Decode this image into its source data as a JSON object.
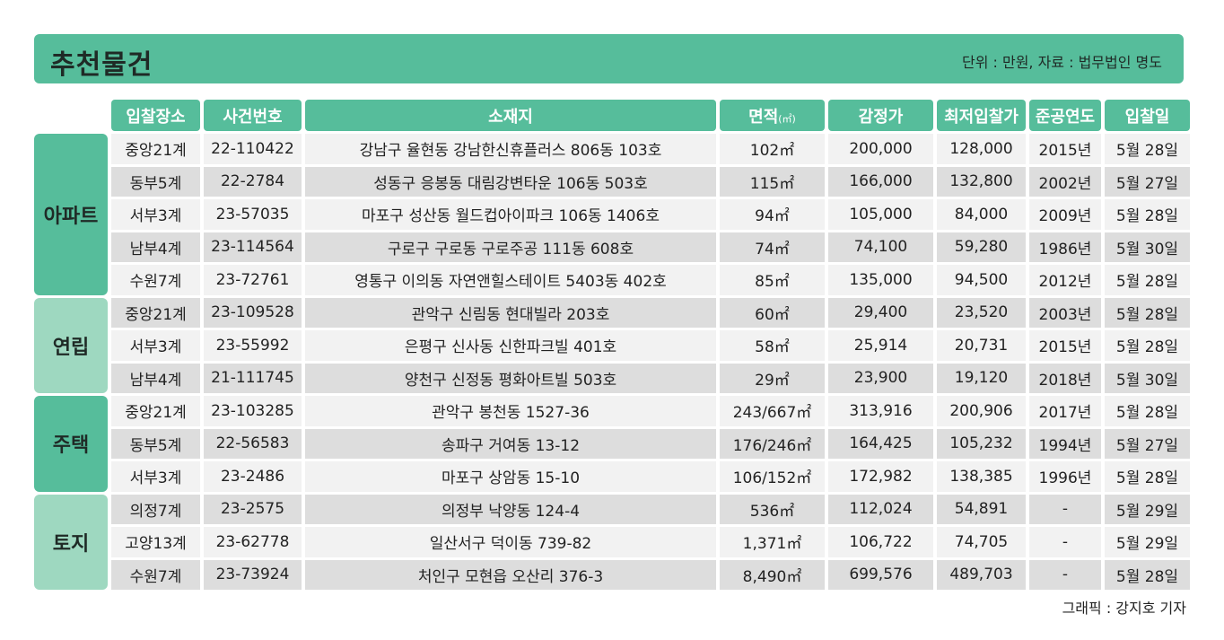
{
  "header": {
    "title": "추천물건",
    "note": "단위 : 만원, 자료 : 법무법인 명도"
  },
  "columns": {
    "place": "입찰장소",
    "case": "사건번호",
    "address": "소재지",
    "area": "면적",
    "area_unit": "(㎡)",
    "appraisal": "감정가",
    "min_bid": "최저입찰가",
    "year": "준공연도",
    "bid_date": "입찰일"
  },
  "groups": [
    {
      "category": "아파트",
      "rows": [
        {
          "place": "중앙21계",
          "case": "22-110422",
          "address": "강남구 율현동 강남한신휴플러스 806동 103호",
          "area": "102㎡",
          "appraisal": "200,000",
          "min_bid": "128,000",
          "year": "2015년",
          "bid_date": "5월 28일"
        },
        {
          "place": "동부5계",
          "case": "22-2784",
          "address": "성동구 응봉동 대림강변타운 106동 503호",
          "area": "115㎡",
          "appraisal": "166,000",
          "min_bid": "132,800",
          "year": "2002년",
          "bid_date": "5월 27일"
        },
        {
          "place": "서부3계",
          "case": "23-57035",
          "address": "마포구 성산동 월드컵아이파크 106동 1406호",
          "area": "94㎡",
          "appraisal": "105,000",
          "min_bid": "84,000",
          "year": "2009년",
          "bid_date": "5월 28일"
        },
        {
          "place": "남부4계",
          "case": "23-114564",
          "address": "구로구 구로동 구로주공 111동 608호",
          "area": "74㎡",
          "appraisal": "74,100",
          "min_bid": "59,280",
          "year": "1986년",
          "bid_date": "5월 30일"
        },
        {
          "place": "수원7계",
          "case": "23-72761",
          "address": "영통구 이의동 자연앤힐스테이트 5403동 402호",
          "area": "85㎡",
          "appraisal": "135,000",
          "min_bid": "94,500",
          "year": "2012년",
          "bid_date": "5월 28일"
        }
      ]
    },
    {
      "category": "연립",
      "rows": [
        {
          "place": "중앙21계",
          "case": "23-109528",
          "address": "관악구 신림동 현대빌라 203호",
          "area": "60㎡",
          "appraisal": "29,400",
          "min_bid": "23,520",
          "year": "2003년",
          "bid_date": "5월 28일"
        },
        {
          "place": "서부3계",
          "case": "23-55992",
          "address": "은평구 신사동 신한파크빌 401호",
          "area": "58㎡",
          "appraisal": "25,914",
          "min_bid": "20,731",
          "year": "2015년",
          "bid_date": "5월 28일"
        },
        {
          "place": "남부4계",
          "case": "21-111745",
          "address": "양천구 신정동 평화아트빌 503호",
          "area": "29㎡",
          "appraisal": "23,900",
          "min_bid": "19,120",
          "year": "2018년",
          "bid_date": "5월 30일"
        }
      ]
    },
    {
      "category": "주택",
      "rows": [
        {
          "place": "중앙21계",
          "case": "23-103285",
          "address": "관악구 봉천동 1527-36",
          "area": "243/667㎡",
          "appraisal": "313,916",
          "min_bid": "200,906",
          "year": "2017년",
          "bid_date": "5월 28일"
        },
        {
          "place": "동부5계",
          "case": "22-56583",
          "address": "송파구 거여동 13-12",
          "area": "176/246㎡",
          "appraisal": "164,425",
          "min_bid": "105,232",
          "year": "1994년",
          "bid_date": "5월 27일"
        },
        {
          "place": "서부3계",
          "case": "23-2486",
          "address": "마포구 상암동 15-10",
          "area": "106/152㎡",
          "appraisal": "172,982",
          "min_bid": "138,385",
          "year": "1996년",
          "bid_date": "5월 28일"
        }
      ]
    },
    {
      "category": "토지",
      "rows": [
        {
          "place": "의정7계",
          "case": "23-2575",
          "address": "의정부 낙양동 124-4",
          "area": "536㎡",
          "appraisal": "112,024",
          "min_bid": "54,891",
          "year": "-",
          "bid_date": "5월 29일"
        },
        {
          "place": "고양13계",
          "case": "23-62778",
          "address": "일산서구 덕이동 739-82",
          "area": "1,371㎡",
          "appraisal": "106,722",
          "min_bid": "74,705",
          "year": "-",
          "bid_date": "5월 29일"
        },
        {
          "place": "수원7계",
          "case": "23-73924",
          "address": "처인구 모현읍 오산리 376-3",
          "area": "8,490㎡",
          "appraisal": "699,576",
          "min_bid": "489,703",
          "year": "-",
          "bid_date": "5월 28일"
        }
      ]
    }
  ],
  "credit": "그래픽 : 강지호 기자"
}
